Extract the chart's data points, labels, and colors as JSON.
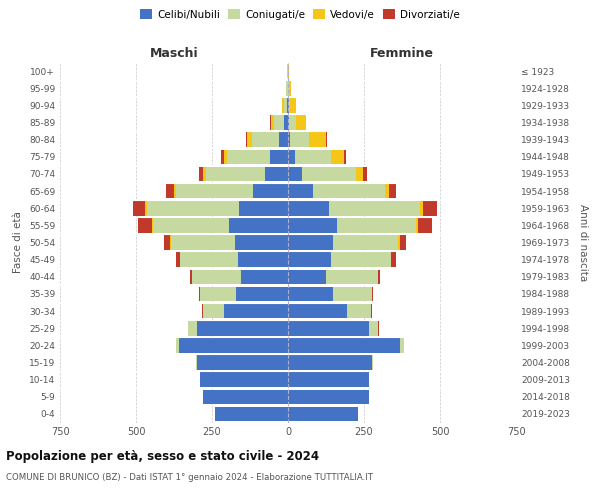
{
  "age_groups": [
    "0-4",
    "5-9",
    "10-14",
    "15-19",
    "20-24",
    "25-29",
    "30-34",
    "35-39",
    "40-44",
    "45-49",
    "50-54",
    "55-59",
    "60-64",
    "65-69",
    "70-74",
    "75-79",
    "80-84",
    "85-89",
    "90-94",
    "95-99",
    "100+"
  ],
  "birth_years": [
    "2019-2023",
    "2014-2018",
    "2009-2013",
    "2004-2008",
    "1999-2003",
    "1994-1998",
    "1989-1993",
    "1984-1988",
    "1979-1983",
    "1974-1978",
    "1969-1973",
    "1964-1968",
    "1959-1963",
    "1954-1958",
    "1949-1953",
    "1944-1948",
    "1939-1943",
    "1934-1938",
    "1929-1933",
    "1924-1928",
    "≤ 1923"
  ],
  "male_celibi": [
    240,
    280,
    290,
    300,
    360,
    300,
    210,
    170,
    155,
    165,
    175,
    195,
    160,
    115,
    75,
    60,
    30,
    12,
    4,
    1,
    1
  ],
  "male_coniugati": [
    0,
    0,
    0,
    3,
    8,
    28,
    70,
    120,
    160,
    190,
    210,
    250,
    305,
    255,
    195,
    140,
    90,
    35,
    10,
    4,
    1
  ],
  "male_vedovi": [
    0,
    0,
    0,
    0,
    0,
    0,
    0,
    0,
    0,
    0,
    2,
    2,
    4,
    4,
    8,
    12,
    15,
    10,
    5,
    3,
    1
  ],
  "male_divorziati": [
    0,
    0,
    0,
    0,
    1,
    1,
    3,
    4,
    7,
    14,
    22,
    45,
    42,
    26,
    14,
    7,
    3,
    1,
    0,
    0,
    0
  ],
  "female_celibi": [
    230,
    265,
    265,
    275,
    370,
    265,
    195,
    148,
    125,
    140,
    148,
    162,
    135,
    82,
    45,
    22,
    8,
    4,
    2,
    1,
    0
  ],
  "female_coniugati": [
    0,
    0,
    0,
    3,
    10,
    32,
    78,
    128,
    170,
    198,
    215,
    260,
    300,
    238,
    178,
    120,
    62,
    22,
    6,
    2,
    1
  ],
  "female_vedovi": [
    0,
    0,
    0,
    0,
    0,
    0,
    0,
    0,
    1,
    2,
    4,
    4,
    8,
    12,
    24,
    42,
    55,
    32,
    18,
    7,
    3
  ],
  "female_divorziati": [
    0,
    0,
    0,
    0,
    1,
    1,
    3,
    4,
    7,
    14,
    22,
    48,
    46,
    22,
    14,
    7,
    2,
    1,
    0,
    0,
    0
  ],
  "colors": {
    "celibi": "#4472c4",
    "coniugati": "#c5d9a0",
    "vedovi": "#f5c518",
    "divorziati": "#c0392b"
  },
  "legend_labels": [
    "Celibi/Nubili",
    "Coniugati/e",
    "Vedovi/e",
    "Divorziati/e"
  ],
  "title": "Popolazione per età, sesso e stato civile - 2024",
  "subtitle": "COMUNE DI BRUNICO (BZ) - Dati ISTAT 1° gennaio 2024 - Elaborazione TUTTITALIA.IT",
  "xlabel_left": "Maschi",
  "xlabel_right": "Femmine",
  "ylabel_left": "Fasce di età",
  "ylabel_right": "Anni di nascita",
  "xlim": 750,
  "background_color": "#ffffff",
  "grid_color": "#c8c8c8"
}
